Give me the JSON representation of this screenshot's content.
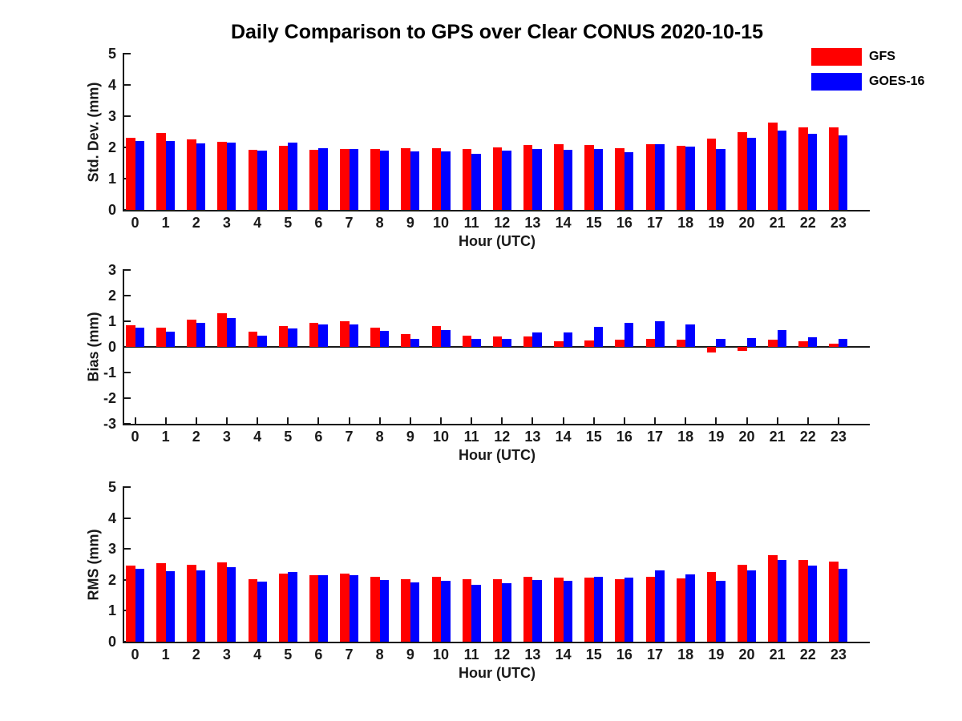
{
  "title": "Daily Comparison to GPS over Clear CONUS 2020-10-15",
  "colors": {
    "gfs": "#ff0000",
    "goes16": "#0000ff",
    "axis": "#1a1a1a"
  },
  "legend": [
    {
      "label": "GFS",
      "color": "#ff0000"
    },
    {
      "label": "GOES-16",
      "color": "#0000ff"
    }
  ],
  "chart_data": [
    {
      "type": "bar",
      "panel": "std-dev",
      "ylabel": "Std. Dev. (mm)",
      "xlabel": "Hour (UTC)",
      "ylim": [
        0,
        5
      ],
      "yticks": [
        0,
        1,
        2,
        3,
        4,
        5
      ],
      "grid": false,
      "legend_position": "top-right",
      "categories": [
        "0",
        "1",
        "2",
        "3",
        "4",
        "5",
        "6",
        "7",
        "8",
        "9",
        "10",
        "11",
        "12",
        "13",
        "14",
        "15",
        "16",
        "17",
        "18",
        "19",
        "20",
        "21",
        "22",
        "23"
      ],
      "series": [
        {
          "name": "GFS",
          "color": "#ff0000",
          "values": [
            2.3,
            2.45,
            2.26,
            2.17,
            1.93,
            2.05,
            1.93,
            1.95,
            1.95,
            1.97,
            1.98,
            1.95,
            2.0,
            2.08,
            2.09,
            2.08,
            1.98,
            2.1,
            2.05,
            2.27,
            2.48,
            2.79,
            2.65,
            2.63
          ]
        },
        {
          "name": "GOES-16",
          "color": "#0000ff",
          "values": [
            2.21,
            2.21,
            2.12,
            2.15,
            1.91,
            2.16,
            1.97,
            1.95,
            1.91,
            1.87,
            1.87,
            1.79,
            1.91,
            1.95,
            1.93,
            1.96,
            1.85,
            2.11,
            2.03,
            1.96,
            2.31,
            2.54,
            2.44,
            2.39
          ]
        }
      ]
    },
    {
      "type": "bar",
      "panel": "bias",
      "ylabel": "Bias (mm)",
      "xlabel": "Hour (UTC)",
      "ylim": [
        -3,
        3
      ],
      "yticks": [
        -3,
        -2,
        -1,
        0,
        1,
        2,
        3
      ],
      "grid": false,
      "categories": [
        "0",
        "1",
        "2",
        "3",
        "4",
        "5",
        "6",
        "7",
        "8",
        "9",
        "10",
        "11",
        "12",
        "13",
        "14",
        "15",
        "16",
        "17",
        "18",
        "19",
        "20",
        "21",
        "22",
        "23"
      ],
      "series": [
        {
          "name": "GFS",
          "color": "#ff0000",
          "values": [
            0.85,
            0.75,
            1.06,
            1.31,
            0.6,
            0.81,
            0.95,
            1.0,
            0.74,
            0.5,
            0.82,
            0.45,
            0.41,
            0.42,
            0.21,
            0.26,
            0.29,
            0.31,
            0.27,
            -0.21,
            -0.17,
            0.29,
            0.21,
            0.13
          ]
        },
        {
          "name": "GOES-16",
          "color": "#0000ff",
          "values": [
            0.76,
            0.58,
            0.95,
            1.13,
            0.44,
            0.73,
            0.87,
            0.88,
            0.61,
            0.31,
            0.66,
            0.31,
            0.3,
            0.55,
            0.55,
            0.79,
            0.95,
            1.0,
            0.89,
            0.31,
            0.34,
            0.67,
            0.38,
            0.3
          ]
        }
      ]
    },
    {
      "type": "bar",
      "panel": "rms",
      "ylabel": "RMS (mm)",
      "xlabel": "Hour (UTC)",
      "ylim": [
        0,
        5
      ],
      "yticks": [
        0,
        1,
        2,
        3,
        4,
        5
      ],
      "grid": false,
      "categories": [
        "0",
        "1",
        "2",
        "3",
        "4",
        "5",
        "6",
        "7",
        "8",
        "9",
        "10",
        "11",
        "12",
        "13",
        "14",
        "15",
        "16",
        "17",
        "18",
        "19",
        "20",
        "21",
        "22",
        "23"
      ],
      "series": [
        {
          "name": "GFS",
          "color": "#ff0000",
          "values": [
            2.46,
            2.54,
            2.48,
            2.57,
            2.03,
            2.2,
            2.16,
            2.19,
            2.09,
            2.03,
            2.11,
            2.02,
            2.02,
            2.1,
            2.07,
            2.07,
            2.01,
            2.1,
            2.04,
            2.25,
            2.49,
            2.8,
            2.65,
            2.59
          ]
        },
        {
          "name": "GOES-16",
          "color": "#0000ff",
          "values": [
            2.36,
            2.28,
            2.3,
            2.41,
            1.94,
            2.26,
            2.16,
            2.16,
            2.0,
            1.91,
            1.96,
            1.85,
            1.9,
            2.0,
            1.98,
            2.1,
            2.07,
            2.3,
            2.17,
            1.97,
            2.3,
            2.63,
            2.46,
            2.37
          ]
        }
      ]
    }
  ]
}
